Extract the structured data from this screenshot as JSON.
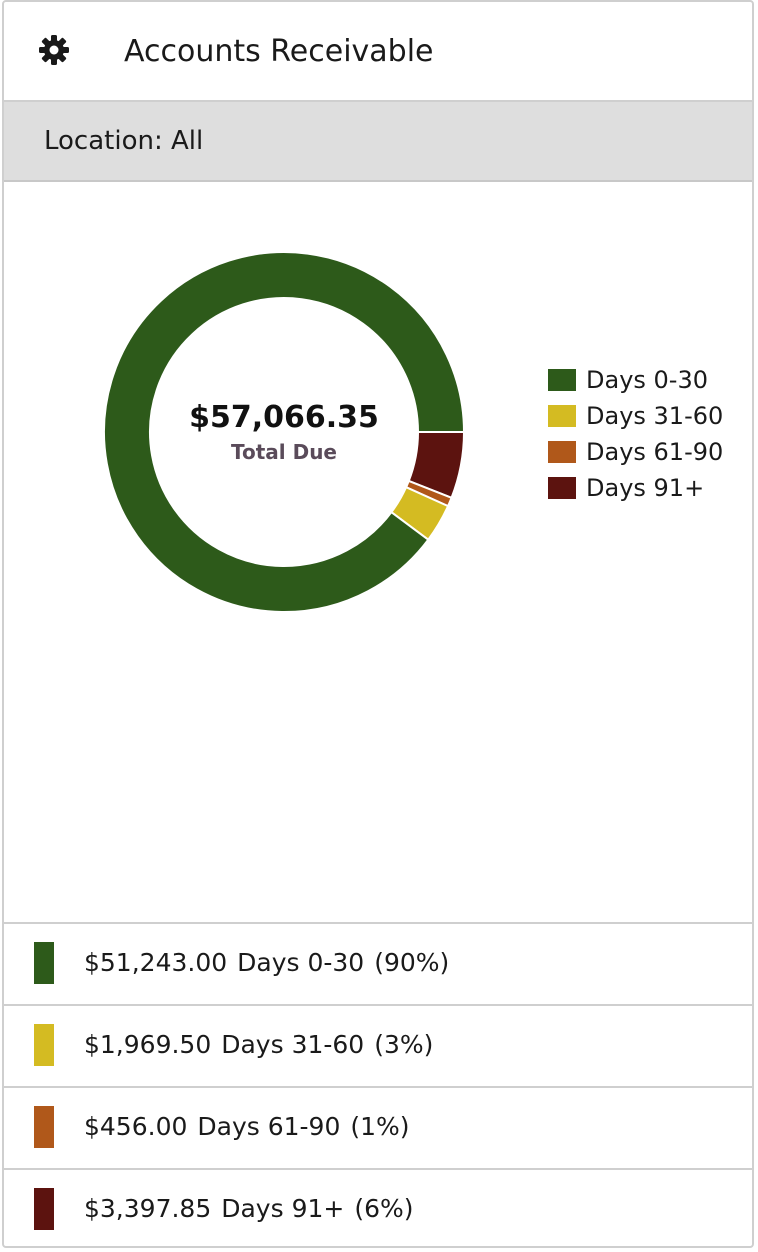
{
  "header": {
    "title": "Accounts Receivable",
    "icon": "gear-icon"
  },
  "filter": {
    "label": "Location: All"
  },
  "donut_center": {
    "value": "$57,066.35",
    "label": "Total Due"
  },
  "colors": {
    "days_0_30": "#2d5a1a",
    "days_31_60": "#d4bb22",
    "days_61_90": "#b0581a",
    "days_91_plus": "#5c130f"
  },
  "chart_data": {
    "type": "pie",
    "donut": true,
    "categories": [
      "Days 0-30",
      "Days 31-60",
      "Days 61-90",
      "Days 91+"
    ],
    "values": [
      51243.0,
      1969.5,
      456.0,
      3397.85
    ],
    "colors": [
      "#2d5a1a",
      "#d4bb22",
      "#b0581a",
      "#5c130f"
    ],
    "legend_position": "right"
  },
  "rows": [
    {
      "amount": "$51,243.00",
      "label": "Days 0-30",
      "percent": "(90%)"
    },
    {
      "amount": "$1,969.50",
      "label": "Days 31-60",
      "percent": "(3%)"
    },
    {
      "amount": "$456.00",
      "label": "Days 61-90",
      "percent": "(1%)"
    },
    {
      "amount": "$3,397.85",
      "label": "Days 91+",
      "percent": "(6%)"
    }
  ]
}
